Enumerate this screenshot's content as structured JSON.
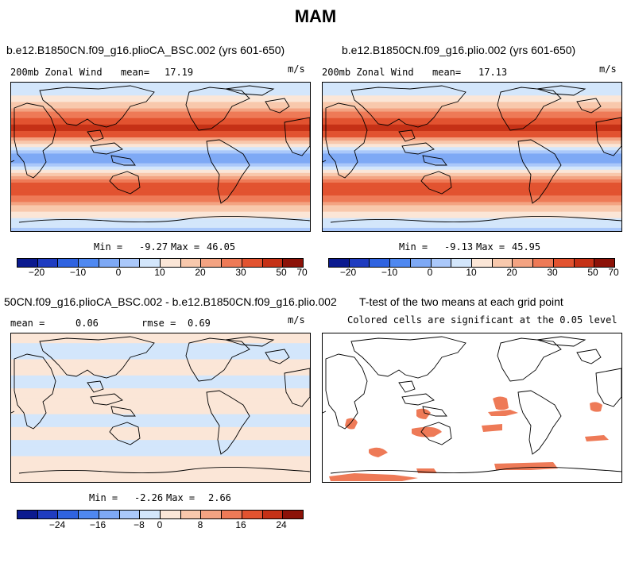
{
  "figure_title": "MAM",
  "colors": {
    "scale": [
      "#0b1a8f",
      "#1f3cc0",
      "#2f63e0",
      "#4f88f0",
      "#7ea9f5",
      "#aac8fa",
      "#d3e6fb",
      "#fbe6d7",
      "#f8c8ac",
      "#f3a382",
      "#ee7a57",
      "#e25330",
      "#c53116",
      "#8c1208"
    ],
    "coast": "#000000",
    "significant": "#ee7a57"
  },
  "chart_data": [
    {
      "type": "heatmap",
      "panel": "top-left",
      "title": "b.e12.B1850CN.f09_g16.plioCA_BSC.002 (yrs 601-650)",
      "variable_label": "200mb Zonal Wind",
      "mean_label": "mean=",
      "mean_value": "17.19",
      "units": "m/s",
      "min_label": "Min =",
      "min_value": "-9.27",
      "max_label": "Max =",
      "max_value": "46.05",
      "colorbar_ticks": [
        "−20",
        "−10",
        "0",
        "10",
        "20",
        "30",
        "50",
        "70"
      ],
      "zonal_profile": [
        {
          "lat": 90,
          "value": 5
        },
        {
          "lat": 75,
          "value": 10
        },
        {
          "lat": 60,
          "value": 20
        },
        {
          "lat": 45,
          "value": 32
        },
        {
          "lat": 35,
          "value": 44
        },
        {
          "lat": 25,
          "value": 30
        },
        {
          "lat": 12,
          "value": 8
        },
        {
          "lat": 0,
          "value": -5
        },
        {
          "lat": -12,
          "value": 4
        },
        {
          "lat": -25,
          "value": 22
        },
        {
          "lat": -35,
          "value": 34
        },
        {
          "lat": -45,
          "value": 30
        },
        {
          "lat": -58,
          "value": 22
        },
        {
          "lat": -70,
          "value": 12
        },
        {
          "lat": -90,
          "value": 4
        }
      ]
    },
    {
      "type": "heatmap",
      "panel": "top-right",
      "title": "b.e12.B1850CN.f09_g16.plio.002 (yrs 601-650)",
      "variable_label": "200mb Zonal Wind",
      "mean_label": "mean=",
      "mean_value": "17.13",
      "units": "m/s",
      "min_label": "Min =",
      "min_value": "-9.13",
      "max_label": "Max =",
      "max_value": "45.95",
      "colorbar_ticks": [
        "−20",
        "−10",
        "0",
        "10",
        "20",
        "30",
        "50",
        "70"
      ],
      "zonal_profile": [
        {
          "lat": 90,
          "value": 5
        },
        {
          "lat": 75,
          "value": 10
        },
        {
          "lat": 60,
          "value": 20
        },
        {
          "lat": 45,
          "value": 32
        },
        {
          "lat": 35,
          "value": 44
        },
        {
          "lat": 25,
          "value": 30
        },
        {
          "lat": 12,
          "value": 8
        },
        {
          "lat": 0,
          "value": -5
        },
        {
          "lat": -12,
          "value": 4
        },
        {
          "lat": -25,
          "value": 22
        },
        {
          "lat": -35,
          "value": 34
        },
        {
          "lat": -45,
          "value": 30
        },
        {
          "lat": -58,
          "value": 22
        },
        {
          "lat": -70,
          "value": 12
        },
        {
          "lat": -90,
          "value": 4
        }
      ]
    },
    {
      "type": "heatmap",
      "panel": "bottom-left",
      "title": "50CN.f09_g16.plioCA_BSC.002 - b.e12.B1850CN.f09_g16.plio.002",
      "mean_label": "mean =",
      "mean_value": "0.06",
      "rmse_label": "rmse =",
      "rmse_value": "0.69",
      "units": "m/s",
      "min_label": "Min =",
      "min_value": "-2.26",
      "max_label": "Max =",
      "max_value": "2.66",
      "colorbar_ticks": [
        "−24",
        "−16",
        "−8",
        "0",
        "8",
        "16",
        "24"
      ],
      "zonal_profile": [
        {
          "lat": 90,
          "value": 1
        },
        {
          "lat": 70,
          "value": -1
        },
        {
          "lat": 50,
          "value": 1
        },
        {
          "lat": 30,
          "value": -1
        },
        {
          "lat": 15,
          "value": 1
        },
        {
          "lat": 0,
          "value": 1
        },
        {
          "lat": -15,
          "value": -1
        },
        {
          "lat": -30,
          "value": 1
        },
        {
          "lat": -50,
          "value": -1
        },
        {
          "lat": -70,
          "value": 1
        },
        {
          "lat": -90,
          "value": 1
        }
      ]
    },
    {
      "type": "heatmap",
      "panel": "bottom-right",
      "title": "T-test of the two means at each grid point",
      "subtitle": "Colored cells are significant at the 0.05 level",
      "significance_level": 0.05
    }
  ]
}
